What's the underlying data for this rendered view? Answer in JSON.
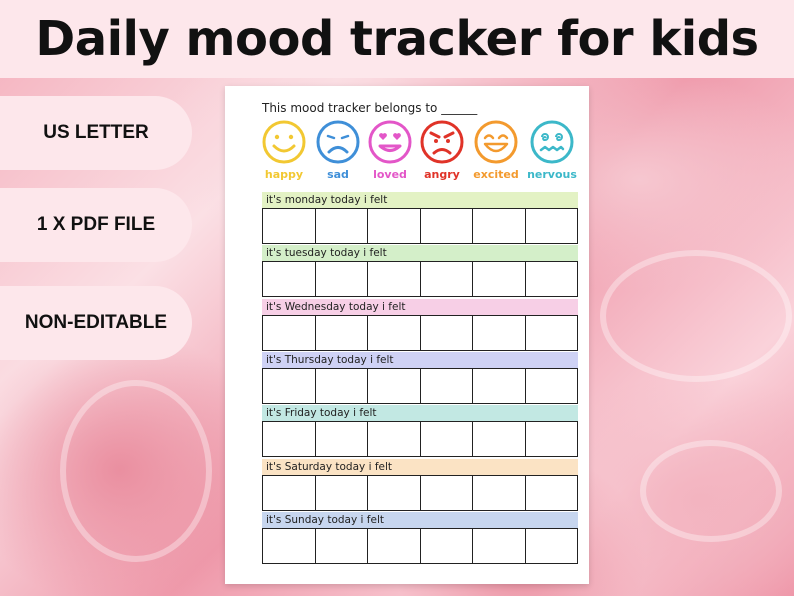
{
  "title": "Daily mood tracker for kids",
  "badges": [
    "US LETTER",
    "1 X PDF FILE",
    "NON-EDITABLE"
  ],
  "sheet": {
    "belongs_to": "This mood tracker belongs to ______",
    "moods": [
      {
        "label": "happy",
        "color": "#f2c832",
        "icon": "happy-face-icon"
      },
      {
        "label": "sad",
        "color": "#3f8fd8",
        "icon": "sad-face-icon"
      },
      {
        "label": "loved",
        "color": "#e356c8",
        "icon": "loved-face-icon"
      },
      {
        "label": "angry",
        "color": "#e03328",
        "icon": "angry-face-icon"
      },
      {
        "label": "excited",
        "color": "#f39a2e",
        "icon": "excited-face-icon"
      },
      {
        "label": "nervous",
        "color": "#3cb8c9",
        "icon": "nervous-face-icon"
      }
    ],
    "days": [
      {
        "label": "it's monday today i felt",
        "color": "#e3f2c4"
      },
      {
        "label": "it's tuesday today i felt",
        "color": "#d4efc9"
      },
      {
        "label": "it's Wednesday today i felt",
        "color": "#f7cfe6"
      },
      {
        "label": "it's Thursday today i felt",
        "color": "#cfd2f5"
      },
      {
        "label": "it's Friday today i felt",
        "color": "#c2e8e3"
      },
      {
        "label": "it's Saturday today i felt",
        "color": "#fbe3c4"
      },
      {
        "label": "it's Sunday today i felt",
        "color": "#c7d6ef"
      }
    ]
  }
}
